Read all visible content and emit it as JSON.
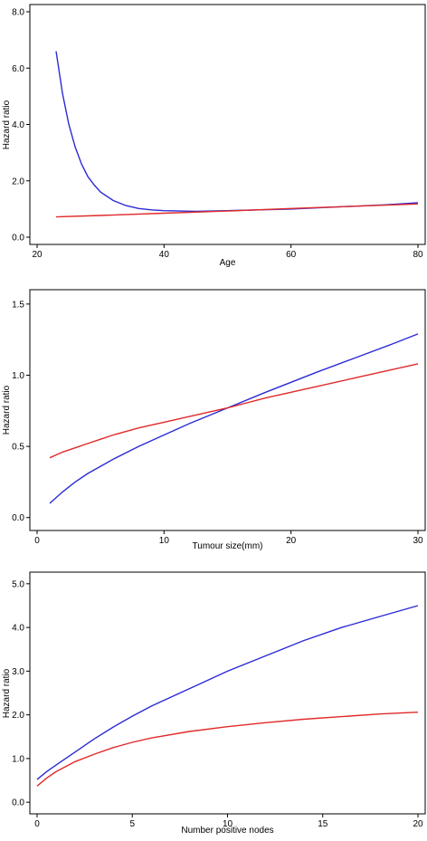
{
  "chart_data": [
    {
      "type": "line",
      "xlabel": "Age",
      "ylabel": "Hazard ratio",
      "xlim": [
        20,
        80
      ],
      "ylim": [
        0,
        8
      ],
      "xticks": [
        "20",
        "40",
        "60",
        "80"
      ],
      "xtick_values": [
        20,
        40,
        60,
        80
      ],
      "yticks": [
        "0.0",
        "2.0",
        "4.0",
        "6.0",
        "8.0"
      ],
      "ytick_values": [
        0,
        2,
        4,
        6,
        8
      ],
      "series": [
        {
          "color": "#2b2bd6",
          "x": [
            23,
            24,
            25,
            26,
            27,
            28,
            29,
            30,
            32,
            34,
            36,
            38,
            40,
            45,
            50,
            55,
            60,
            65,
            70,
            75,
            80
          ],
          "y": [
            6.6,
            5.1,
            4.0,
            3.2,
            2.6,
            2.15,
            1.85,
            1.6,
            1.3,
            1.12,
            1.02,
            0.97,
            0.94,
            0.92,
            0.94,
            0.97,
            1.0,
            1.05,
            1.1,
            1.15,
            1.22
          ]
        },
        {
          "color": "#e02a2a",
          "x": [
            23,
            30,
            40,
            50,
            60,
            70,
            80
          ],
          "y": [
            0.72,
            0.77,
            0.85,
            0.93,
            1.02,
            1.1,
            1.18
          ]
        }
      ]
    },
    {
      "type": "line",
      "xlabel": "Tumour size(mm)",
      "ylabel": "Hazard ratio",
      "xlim": [
        0,
        30
      ],
      "ylim": [
        -0.04,
        1.55
      ],
      "xticks": [
        "0",
        "10",
        "20",
        "30"
      ],
      "xtick_values": [
        0,
        10,
        20,
        30
      ],
      "yticks": [
        "0.0",
        "0.5",
        "1.0",
        "1.5"
      ],
      "ytick_values": [
        0,
        0.5,
        1.0,
        1.5
      ],
      "series": [
        {
          "color": "#2b2bd6",
          "x": [
            1,
            2,
            3,
            4,
            5,
            6,
            8,
            10,
            12,
            15,
            18,
            20,
            22,
            25,
            28,
            30
          ],
          "y": [
            0.1,
            0.18,
            0.25,
            0.31,
            0.36,
            0.41,
            0.5,
            0.58,
            0.66,
            0.77,
            0.88,
            0.95,
            1.02,
            1.12,
            1.22,
            1.29
          ]
        },
        {
          "color": "#e02a2a",
          "x": [
            1,
            2,
            3,
            4,
            5,
            6,
            8,
            10,
            12,
            15,
            18,
            20,
            22,
            25,
            28,
            30
          ],
          "y": [
            0.42,
            0.46,
            0.49,
            0.52,
            0.55,
            0.58,
            0.63,
            0.67,
            0.71,
            0.77,
            0.84,
            0.88,
            0.92,
            0.98,
            1.04,
            1.08
          ]
        }
      ]
    },
    {
      "type": "line",
      "xlabel": "Number positive nodes",
      "ylabel": "Hazard ratio",
      "xlim": [
        0,
        20
      ],
      "ylim": [
        -0.1,
        5.1
      ],
      "xticks": [
        "0",
        "5",
        "10",
        "15",
        "20"
      ],
      "xtick_values": [
        0,
        5,
        10,
        15,
        20
      ],
      "yticks": [
        "0.0",
        "1.0",
        "2.0",
        "3.0",
        "4.0",
        "5.0"
      ],
      "ytick_values": [
        0,
        1,
        2,
        3,
        4,
        5
      ],
      "series": [
        {
          "color": "#2b2bd6",
          "x": [
            0,
            0.5,
            1,
            2,
            3,
            4,
            5,
            6,
            8,
            10,
            12,
            14,
            16,
            18,
            20
          ],
          "y": [
            0.52,
            0.7,
            0.85,
            1.15,
            1.45,
            1.72,
            1.97,
            2.2,
            2.6,
            3.0,
            3.35,
            3.7,
            4.0,
            4.25,
            4.5
          ]
        },
        {
          "color": "#e02a2a",
          "x": [
            0,
            0.5,
            1,
            2,
            3,
            4,
            5,
            6,
            8,
            10,
            12,
            14,
            16,
            18,
            20
          ],
          "y": [
            0.37,
            0.55,
            0.7,
            0.93,
            1.1,
            1.25,
            1.37,
            1.47,
            1.62,
            1.73,
            1.82,
            1.9,
            1.96,
            2.02,
            2.06
          ]
        }
      ]
    }
  ]
}
